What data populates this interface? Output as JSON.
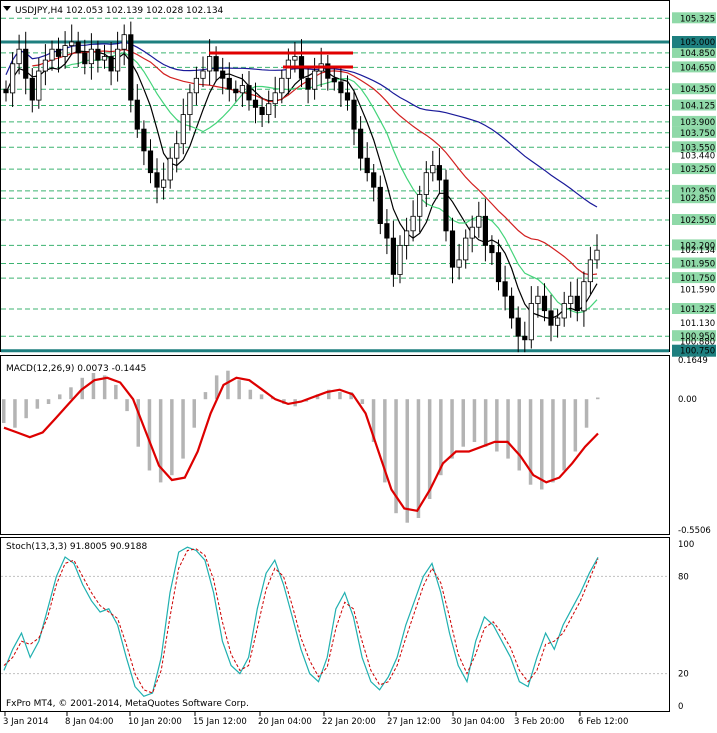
{
  "window": {
    "symbol_header": "USDJPY,H4  102.053 102.139 102.028 102.134",
    "copyright": "FxPro MT4, © 2001-2014, MetaQuotes Software Corp."
  },
  "colors": {
    "background": "#ffffff",
    "candles": "#000000",
    "level_teal": "#1e7f7f",
    "level_dashed": "#3cb371",
    "resistance_red": "#e00000",
    "ma_red": "#d22020",
    "ma_green": "#44d47a",
    "ma_blue": "#1a1a99",
    "ma_black": "#000000",
    "macd_hist": "#b4b4b4",
    "macd_signal": "#dd0000",
    "stoch_main": "#20b0b0",
    "stoch_signal": "#cc0000"
  },
  "price_panel": {
    "ylim": [
      100.76,
      105.55
    ],
    "scale_labels": [
      "105.325",
      "104.850",
      "104.650",
      "104.350",
      "104.125",
      "103.900",
      "103.750",
      "103.550",
      "103.440",
      "103.250",
      "102.950",
      "102.850",
      "102.550",
      "102.200",
      "102.134",
      "101.950",
      "101.750",
      "101.590",
      "101.325",
      "101.130",
      "100.950",
      "100.880"
    ],
    "boxed_labels": [
      "105.000",
      "100.750"
    ],
    "teal_levels": [
      105.0,
      100.75
    ],
    "dashed_levels": [
      105.325,
      104.85,
      104.65,
      104.35,
      104.125,
      103.9,
      103.75,
      103.55,
      103.25,
      102.95,
      102.85,
      102.55,
      102.2,
      101.95,
      101.75,
      101.325,
      100.95
    ]
  },
  "macd_panel": {
    "label": "MACD(12,26,9) 0.0073 -0.1445",
    "scale_labels": [
      "0.1649",
      "0.00",
      "-0.5506"
    ],
    "ylim": [
      -0.5506,
      0.1649
    ]
  },
  "stoch_panel": {
    "label": "Stoch(13,3,3) 91.8005 90.9188",
    "scale_labels": [
      "100",
      "80",
      "20",
      "0"
    ],
    "ylim": [
      0,
      100
    ]
  },
  "time_axis": {
    "labels": [
      "3 Jan 2014",
      "8 Jan 04:00",
      "10 Jan 20:00",
      "15 Jan 12:00",
      "20 Jan 04:00",
      "22 Jan 20:00",
      "27 Jan 12:00",
      "30 Jan 04:00",
      "3 Feb 20:00",
      "6 Feb 12:00"
    ]
  },
  "chart_data": {
    "type": "candlestick",
    "symbol": "USDJPY",
    "timeframe": "H4",
    "ohlc_last": {
      "open": 102.053,
      "high": 102.139,
      "low": 102.028,
      "close": 102.134
    },
    "close_approx": [
      104.3,
      104.7,
      104.9,
      104.5,
      104.2,
      104.6,
      104.75,
      104.9,
      104.8,
      104.95,
      105.0,
      104.85,
      104.7,
      104.9,
      104.75,
      104.8,
      104.6,
      104.9,
      105.1,
      104.2,
      103.8,
      103.5,
      103.2,
      103.0,
      103.1,
      103.4,
      103.6,
      104.0,
      104.3,
      104.5,
      104.6,
      104.8,
      104.6,
      104.5,
      104.35,
      104.3,
      104.4,
      104.2,
      104.1,
      104.0,
      104.15,
      104.3,
      104.5,
      104.75,
      104.8,
      104.5,
      104.35,
      104.6,
      104.7,
      104.5,
      104.45,
      104.3,
      104.2,
      103.8,
      103.4,
      103.2,
      103.0,
      102.5,
      102.3,
      101.8,
      102.2,
      102.4,
      102.6,
      102.9,
      103.2,
      103.3,
      103.1,
      102.4,
      101.9,
      102.0,
      102.3,
      102.45,
      102.6,
      102.2,
      102.1,
      101.7,
      101.5,
      101.2,
      100.95,
      100.9,
      101.4,
      101.5,
      101.3,
      101.1,
      101.2,
      101.4,
      101.5,
      101.3,
      101.7,
      102.0,
      102.134
    ],
    "macd_hist_approx": [
      -0.1,
      -0.12,
      -0.08,
      -0.04,
      -0.02,
      0.02,
      0.05,
      0.09,
      0.11,
      0.1,
      0.06,
      -0.05,
      -0.2,
      -0.3,
      -0.35,
      -0.32,
      -0.25,
      -0.12,
      0.03,
      0.1,
      0.12,
      0.08,
      0.04,
      0.02,
      0.01,
      -0.02,
      -0.03,
      -0.01,
      0.02,
      0.04,
      0.03,
      0.03,
      -0.02,
      -0.18,
      -0.35,
      -0.48,
      -0.52,
      -0.5,
      -0.42,
      -0.32,
      -0.25,
      -0.2,
      -0.18,
      -0.2,
      -0.22,
      -0.25,
      -0.3,
      -0.36,
      -0.38,
      -0.35,
      -0.3,
      -0.22,
      -0.12,
      0.007
    ],
    "macd_signal_approx": [
      -0.12,
      -0.14,
      -0.16,
      -0.14,
      -0.08,
      -0.02,
      0.04,
      0.08,
      0.09,
      0.07,
      0.0,
      -0.14,
      -0.28,
      -0.34,
      -0.33,
      -0.22,
      -0.06,
      0.06,
      0.09,
      0.08,
      0.04,
      0.0,
      -0.02,
      -0.01,
      0.01,
      0.03,
      0.04,
      0.02,
      -0.06,
      -0.22,
      -0.38,
      -0.46,
      -0.47,
      -0.38,
      -0.27,
      -0.22,
      -0.22,
      -0.2,
      -0.18,
      -0.18,
      -0.24,
      -0.32,
      -0.35,
      -0.33,
      -0.27,
      -0.2,
      -0.1445
    ],
    "stoch_main_approx": [
      22,
      35,
      45,
      30,
      40,
      60,
      80,
      92,
      88,
      75,
      65,
      58,
      60,
      50,
      30,
      12,
      6,
      8,
      30,
      70,
      95,
      98,
      96,
      90,
      70,
      40,
      25,
      20,
      30,
      60,
      82,
      90,
      75,
      55,
      35,
      20,
      15,
      30,
      60,
      70,
      55,
      30,
      15,
      10,
      18,
      30,
      50,
      65,
      80,
      88,
      70,
      45,
      25,
      15,
      40,
      55,
      50,
      40,
      30,
      15,
      12,
      30,
      45,
      35,
      50,
      60,
      70,
      82,
      91.8
    ],
    "stoch_signal_approx": [
      25,
      30,
      40,
      38,
      42,
      55,
      75,
      88,
      90,
      80,
      70,
      62,
      58,
      54,
      38,
      20,
      10,
      8,
      22,
      55,
      85,
      96,
      97,
      93,
      78,
      52,
      32,
      22,
      25,
      48,
      72,
      85,
      80,
      62,
      42,
      28,
      18,
      24,
      48,
      64,
      60,
      40,
      22,
      13,
      15,
      25,
      42,
      58,
      74,
      85,
      76,
      55,
      32,
      20,
      32,
      48,
      52,
      45,
      36,
      22,
      15,
      22,
      38,
      40,
      45,
      55,
      65,
      78,
      90.9
    ],
    "xlabel": "",
    "ylabel": ""
  }
}
